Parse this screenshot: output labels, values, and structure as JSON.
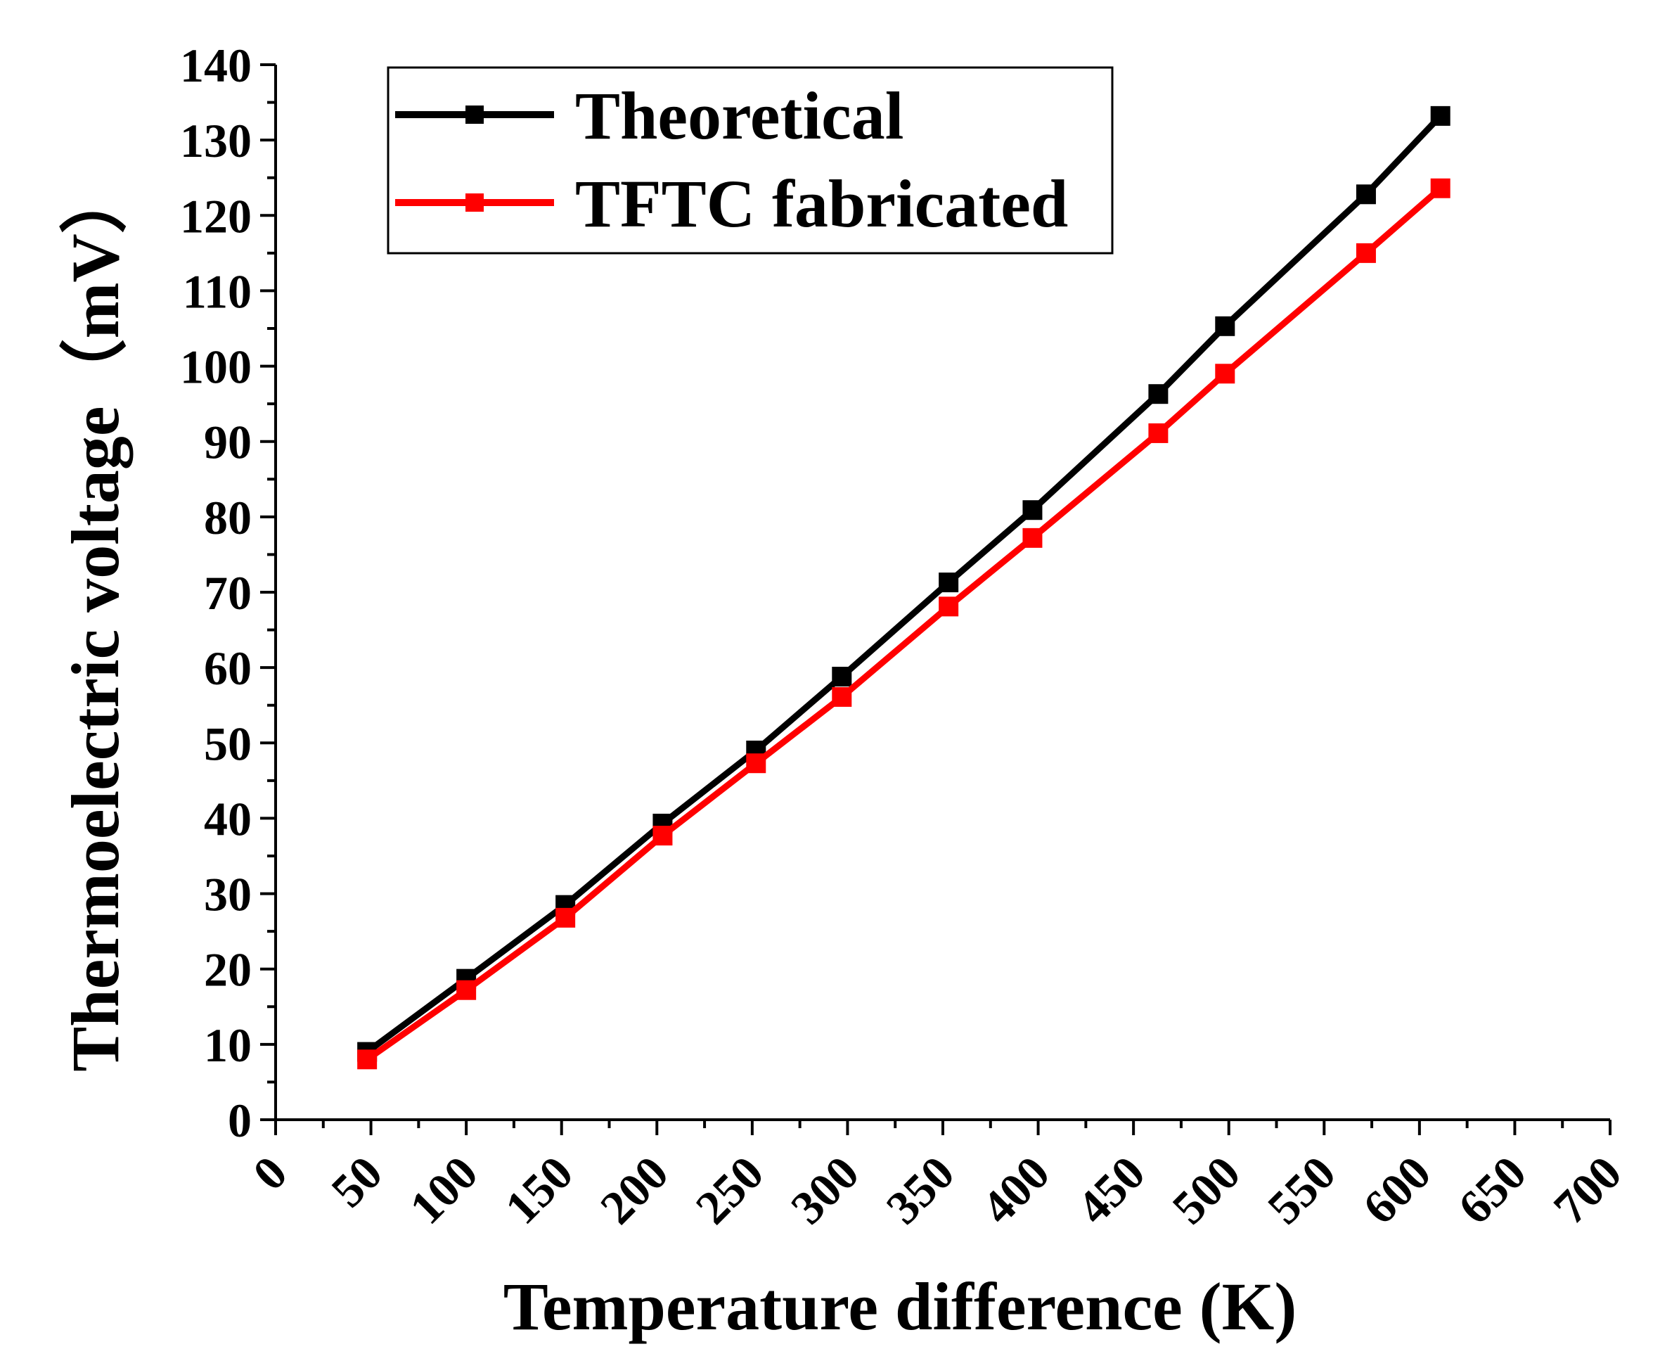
{
  "chart_data": {
    "type": "line",
    "title": "",
    "xlabel": "Temperature difference (K)",
    "ylabel": "Thermoelectric voltage（mV）",
    "xlim": [
      0,
      700
    ],
    "ylim": [
      0,
      140
    ],
    "xticks": [
      0,
      50,
      100,
      150,
      200,
      250,
      300,
      350,
      400,
      450,
      500,
      550,
      600,
      650,
      700
    ],
    "yticks": [
      0,
      10,
      20,
      30,
      40,
      50,
      60,
      70,
      80,
      90,
      100,
      110,
      120,
      130,
      140
    ],
    "grid": false,
    "legend_position": "top-left",
    "series": [
      {
        "name": "Theoretical",
        "color": "#000000",
        "marker": "square",
        "x": [
          48,
          100,
          152,
          203,
          252,
          297,
          353,
          397,
          463,
          498,
          572,
          611
        ],
        "y": [
          9.0,
          18.7,
          28.5,
          39.3,
          49.0,
          58.8,
          71.3,
          80.9,
          96.3,
          105.3,
          122.8,
          133.2
        ]
      },
      {
        "name": "TFTC fabricated",
        "color": "#ff0000",
        "marker": "square",
        "x": [
          48,
          100,
          152,
          203,
          252,
          297,
          353,
          397,
          463,
          498,
          572,
          611
        ],
        "y": [
          8.0,
          17.2,
          26.8,
          37.7,
          47.3,
          56.1,
          68.1,
          77.2,
          91.1,
          99.0,
          115.0,
          123.6
        ]
      }
    ]
  }
}
